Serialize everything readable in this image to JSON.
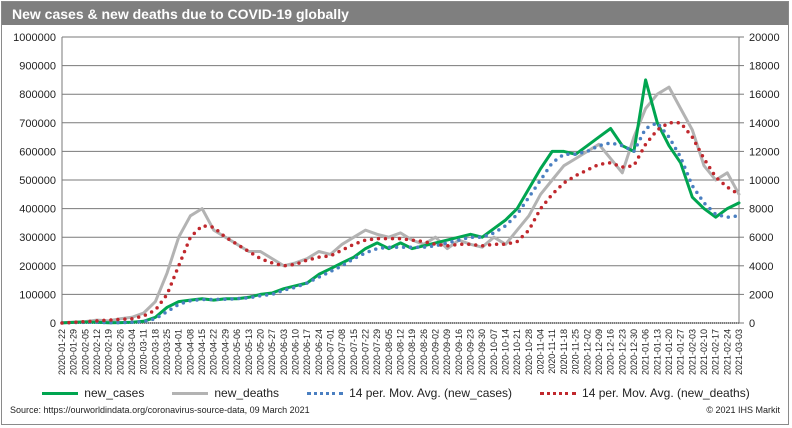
{
  "chart_data": {
    "type": "line",
    "title": "New cases & new deaths due to COVID-19 globally",
    "x": [
      "2020-01-22",
      "2020-01-29",
      "2020-02-05",
      "2020-02-12",
      "2020-02-19",
      "2020-02-26",
      "2020-03-04",
      "2020-03-11",
      "2020-03-18",
      "2020-03-25",
      "2020-04-01",
      "2020-04-08",
      "2020-04-15",
      "2020-04-22",
      "2020-04-29",
      "2020-05-06",
      "2020-05-13",
      "2020-05-20",
      "2020-05-27",
      "2020-06-03",
      "2020-06-10",
      "2020-06-17",
      "2020-06-24",
      "2020-07-01",
      "2020-07-08",
      "2020-07-15",
      "2020-07-22",
      "2020-07-29",
      "2020-08-05",
      "2020-08-12",
      "2020-08-19",
      "2020-08-26",
      "2020-09-02",
      "2020-09-09",
      "2020-09-16",
      "2020-09-23",
      "2020-09-30",
      "2020-10-07",
      "2020-10-14",
      "2020-10-21",
      "2020-10-28",
      "2020-11-04",
      "2020-11-11",
      "2020-11-18",
      "2020-11-25",
      "2020-12-02",
      "2020-12-09",
      "2020-12-16",
      "2020-12-23",
      "2020-12-30",
      "2021-01-06",
      "2021-01-13",
      "2021-01-20",
      "2021-01-27",
      "2021-02-03",
      "2021-02-10",
      "2021-02-17",
      "2021-02-24",
      "2021-03-03"
    ],
    "y_left": {
      "ylim": [
        0,
        1000000
      ],
      "ticks": [
        "0",
        "100000",
        "200000",
        "300000",
        "400000",
        "500000",
        "600000",
        "700000",
        "800000",
        "900000",
        "1000000"
      ]
    },
    "y_right": {
      "ylim": [
        0,
        20000
      ],
      "ticks": [
        "0",
        "2000",
        "4000",
        "6000",
        "8000",
        "10000",
        "12000",
        "14000",
        "16000",
        "18000",
        "20000"
      ]
    },
    "grid": true,
    "legend_position": "bottom",
    "series": [
      {
        "name": "new_cases",
        "axis": "left",
        "color": "#00a550",
        "style": "solid",
        "values": [
          500,
          2000,
          3500,
          2500,
          1000,
          1500,
          2500,
          6000,
          20000,
          55000,
          75000,
          80000,
          85000,
          80000,
          85000,
          85000,
          90000,
          100000,
          105000,
          120000,
          130000,
          140000,
          170000,
          190000,
          210000,
          230000,
          260000,
          280000,
          260000,
          280000,
          260000,
          270000,
          280000,
          290000,
          300000,
          310000,
          300000,
          330000,
          360000,
          400000,
          470000,
          540000,
          600000,
          600000,
          590000,
          620000,
          650000,
          680000,
          620000,
          600000,
          850000,
          700000,
          620000,
          560000,
          440000,
          400000,
          370000,
          400000,
          420000
        ]
      },
      {
        "name": "new_deaths",
        "axis": "right",
        "color": "#b3b3b3",
        "style": "solid",
        "values": [
          20,
          60,
          100,
          200,
          150,
          300,
          400,
          700,
          1500,
          3500,
          6000,
          7500,
          8000,
          6500,
          6000,
          5500,
          5000,
          5000,
          4500,
          4000,
          4200,
          4500,
          5000,
          4800,
          5500,
          6000,
          6500,
          6200,
          6000,
          6300,
          5800,
          5500,
          6000,
          5200,
          5800,
          5500,
          5300,
          6000,
          5500,
          6500,
          7500,
          9000,
          10000,
          11000,
          11500,
          12000,
          12500,
          11500,
          10500,
          13000,
          15000,
          16000,
          16500,
          15000,
          13500,
          11000,
          10000,
          10500,
          9000
        ]
      },
      {
        "name": "14 per. Mov. Avg. (new_cases)",
        "axis": "left",
        "color": "#4a7fc1",
        "style": "dotted",
        "values": [
          400,
          1500,
          2500,
          2500,
          1500,
          1500,
          2500,
          5000,
          15000,
          40000,
          65000,
          78000,
          82000,
          82000,
          83000,
          85000,
          88000,
          95000,
          100000,
          115000,
          125000,
          140000,
          160000,
          180000,
          200000,
          225000,
          245000,
          260000,
          265000,
          265000,
          265000,
          265000,
          270000,
          280000,
          290000,
          300000,
          300000,
          315000,
          340000,
          380000,
          440000,
          500000,
          560000,
          590000,
          590000,
          600000,
          620000,
          630000,
          620000,
          600000,
          680000,
          700000,
          650000,
          580000,
          480000,
          420000,
          380000,
          370000,
          375000
        ]
      },
      {
        "name": "14 per. Mov. Avg. (new_deaths)",
        "axis": "right",
        "color": "#c0282d",
        "style": "dotted",
        "values": [
          0,
          50,
          100,
          150,
          200,
          250,
          300,
          500,
          900,
          2000,
          4000,
          6000,
          6800,
          6700,
          6000,
          5500,
          5000,
          4500,
          4200,
          4000,
          4100,
          4400,
          4600,
          4700,
          5100,
          5500,
          5800,
          5900,
          5900,
          5900,
          5800,
          5700,
          5500,
          5400,
          5500,
          5500,
          5400,
          5500,
          5500,
          5700,
          6500,
          8000,
          9000,
          9800,
          10300,
          10700,
          11100,
          11200,
          10900,
          11000,
          12500,
          13500,
          14000,
          14000,
          13000,
          11500,
          10200,
          9500,
          9000
        ]
      }
    ]
  },
  "footer": {
    "source": "Source: https://ourworldindata.org/coronavirus-source-data, 09 March 2021",
    "copyright": "© 2021 IHS Markit"
  }
}
